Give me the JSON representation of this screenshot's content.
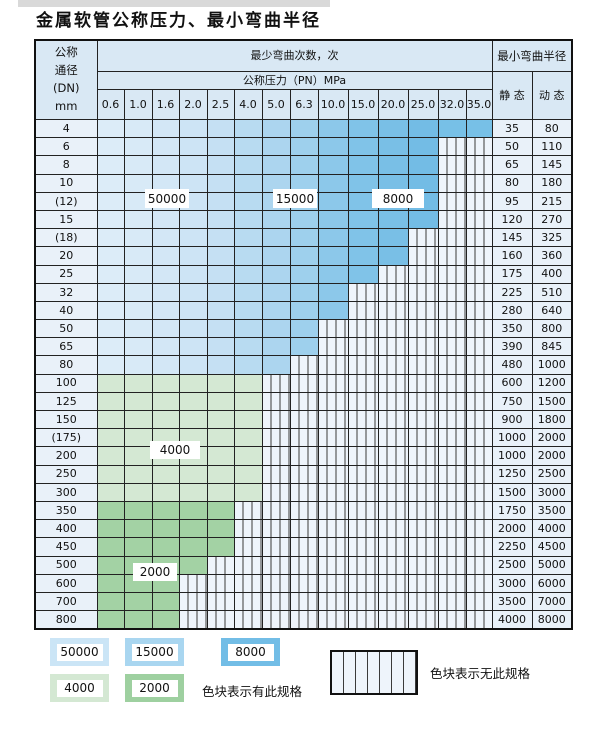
{
  "title": "金属软管公称压力、最小弯曲半径",
  "table": {
    "header": {
      "dn_label_lines": [
        "公称",
        "通径",
        "(DN)",
        "mm"
      ],
      "cycles_label": "最少弯曲次数，次",
      "pressure_label": "公称压力（PN）MPa",
      "radius_label": "最小弯曲半径",
      "static_label": "静 态",
      "dynamic_label": "动 态",
      "pressures": [
        "0.6",
        "1.0",
        "1.6",
        "2.0",
        "2.5",
        "4.0",
        "5.0",
        "6.3",
        "10.0",
        "15.0",
        "20.0",
        "25.0",
        "32.0",
        "35.0"
      ]
    },
    "rows": [
      {
        "dn": "4",
        "colored": 14,
        "shade": "blue",
        "static": "35",
        "dynamic": "80"
      },
      {
        "dn": "6",
        "colored": 12,
        "shade": "blue",
        "static": "50",
        "dynamic": "110"
      },
      {
        "dn": "8",
        "colored": 12,
        "shade": "blue",
        "static": "65",
        "dynamic": "145"
      },
      {
        "dn": "10",
        "colored": 12,
        "shade": "blue",
        "static": "80",
        "dynamic": "180"
      },
      {
        "dn": "(12)",
        "colored": 12,
        "shade": "blue",
        "static": "95",
        "dynamic": "215"
      },
      {
        "dn": "15",
        "colored": 12,
        "shade": "blue",
        "static": "120",
        "dynamic": "270"
      },
      {
        "dn": "(18)",
        "colored": 11,
        "shade": "blue",
        "static": "145",
        "dynamic": "325"
      },
      {
        "dn": "20",
        "colored": 11,
        "shade": "blue",
        "static": "160",
        "dynamic": "360"
      },
      {
        "dn": "25",
        "colored": 10,
        "shade": "blue",
        "static": "175",
        "dynamic": "400"
      },
      {
        "dn": "32",
        "colored": 9,
        "shade": "blue",
        "static": "225",
        "dynamic": "510"
      },
      {
        "dn": "40",
        "colored": 9,
        "shade": "blue",
        "static": "280",
        "dynamic": "640"
      },
      {
        "dn": "50",
        "colored": 8,
        "shade": "blue",
        "static": "350",
        "dynamic": "800"
      },
      {
        "dn": "65",
        "colored": 8,
        "shade": "blue",
        "static": "390",
        "dynamic": "845"
      },
      {
        "dn": "80",
        "colored": 7,
        "shade": "blue",
        "static": "480",
        "dynamic": "1000"
      },
      {
        "dn": "100",
        "colored": 6,
        "shade": "green-light",
        "static": "600",
        "dynamic": "1200"
      },
      {
        "dn": "125",
        "colored": 6,
        "shade": "green-light",
        "static": "750",
        "dynamic": "1500"
      },
      {
        "dn": "150",
        "colored": 6,
        "shade": "green-light",
        "static": "900",
        "dynamic": "1800"
      },
      {
        "dn": "(175)",
        "colored": 6,
        "shade": "green-light",
        "static": "1000",
        "dynamic": "2000"
      },
      {
        "dn": "200",
        "colored": 6,
        "shade": "green-light",
        "static": "1000",
        "dynamic": "2000"
      },
      {
        "dn": "250",
        "colored": 6,
        "shade": "green-light",
        "static": "1250",
        "dynamic": "2500"
      },
      {
        "dn": "300",
        "colored": 6,
        "shade": "green-light",
        "static": "1500",
        "dynamic": "3000"
      },
      {
        "dn": "350",
        "colored": 5,
        "shade": "green-medium",
        "static": "1750",
        "dynamic": "3500"
      },
      {
        "dn": "400",
        "colored": 5,
        "shade": "green-medium",
        "static": "2000",
        "dynamic": "4000"
      },
      {
        "dn": "450",
        "colored": 5,
        "shade": "green-medium",
        "static": "2250",
        "dynamic": "4500"
      },
      {
        "dn": "500",
        "colored": 4,
        "shade": "green-medium",
        "static": "2500",
        "dynamic": "5000"
      },
      {
        "dn": "600",
        "colored": 3,
        "shade": "green-medium",
        "static": "3000",
        "dynamic": "6000"
      },
      {
        "dn": "700",
        "colored": 3,
        "shade": "green-medium",
        "static": "3500",
        "dynamic": "7000"
      },
      {
        "dn": "800",
        "colored": 3,
        "shade": "green-medium",
        "static": "4000",
        "dynamic": "8000"
      }
    ]
  },
  "overlays": [
    {
      "text": "50000"
    },
    {
      "text": "15000"
    },
    {
      "text": "8000"
    },
    {
      "text": "4000"
    },
    {
      "text": "2000"
    }
  ],
  "legend": {
    "swatches": [
      {
        "label": "50000",
        "color": "#cbe5f6"
      },
      {
        "label": "15000",
        "color": "#a9d6f0"
      },
      {
        "label": "8000",
        "color": "#72bde6"
      },
      {
        "label": "4000",
        "color": "#d4e8d3"
      },
      {
        "label": "2000",
        "color": "#9ed0a0"
      }
    ],
    "has_spec_text": "色块表示有此规格",
    "no_spec_text": "色块表示无此规格"
  },
  "colors": {
    "blue_columns": [
      "#dcecf8",
      "#d8eaf7",
      "#d3e7f6",
      "#cde4f5",
      "#c5e0f3",
      "#b8dbf1",
      "#acd5ef",
      "#9ed0ed",
      "#8cc8ea",
      "#80c3e8",
      "#79bfe6",
      "#73bce5",
      "#77c0e7",
      "#77c0e7"
    ],
    "green_light": "#d4e8d3",
    "green_medium": "#a3d2a4",
    "striped_bg": "#eef4fb",
    "striped_line": "#3a3a3a",
    "header_bg": "#d9e8f4",
    "side_bg": "#e9f1f9"
  }
}
